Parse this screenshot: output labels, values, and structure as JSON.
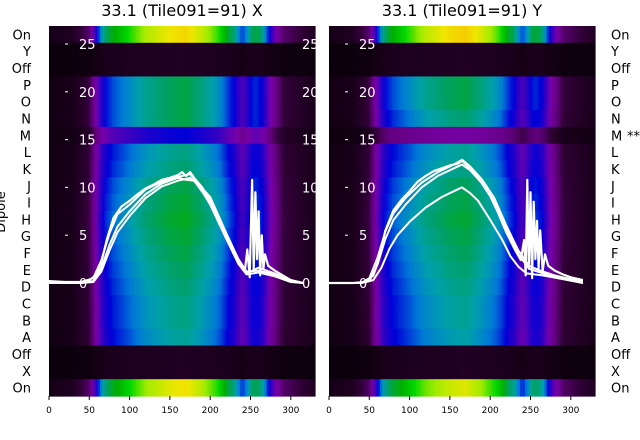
{
  "chart_data": [
    {
      "type": "heatmap",
      "title": "33.1 (Tile091=91) X",
      "ylabel": "Dipole",
      "x_ticks": [
        0,
        50,
        100,
        150,
        200,
        250,
        300
      ],
      "overlay_ticks": [
        0,
        5,
        10,
        15,
        20,
        25
      ],
      "xlim": [
        0,
        330
      ],
      "colormap": "spectral (black-purple-blue-green-yellow)",
      "row_labels": [
        "On",
        "Y",
        "Off",
        "P",
        "O",
        "N",
        "M",
        "L",
        "K",
        "J",
        "I",
        "H",
        "G",
        "F",
        "E",
        "D",
        "C",
        "B",
        "A",
        "Off",
        "X",
        "On"
      ],
      "row_notes": [
        "",
        "",
        "",
        "",
        "",
        "",
        "",
        "",
        "",
        "",
        "",
        "",
        "",
        "",
        "",
        "",
        "",
        "",
        "",
        "",
        "",
        ""
      ],
      "band_profile": {
        "x": [
          0,
          30,
          50,
          60,
          70,
          80,
          100,
          120,
          150,
          170,
          190,
          210,
          230,
          240,
          255,
          265,
          275,
          290,
          330
        ],
        "level": [
          0.02,
          0.04,
          0.12,
          0.35,
          0.52,
          0.58,
          0.65,
          0.72,
          0.78,
          0.8,
          0.74,
          0.66,
          0.5,
          0.38,
          0.55,
          0.5,
          0.3,
          0.12,
          0.04
        ]
      },
      "series": [
        {
          "values": [
            [
              0,
              0.2
            ],
            [
              20,
              0.1
            ],
            [
              40,
              0.1
            ],
            [
              50,
              0.3
            ],
            [
              58,
              0.8
            ],
            [
              65,
              2.2
            ],
            [
              72,
              4.6
            ],
            [
              80,
              6.8
            ],
            [
              90,
              8.0
            ],
            [
              100,
              8.6
            ],
            [
              110,
              9.3
            ],
            [
              120,
              9.9
            ],
            [
              130,
              10.3
            ],
            [
              140,
              10.8
            ],
            [
              150,
              11.0
            ],
            [
              160,
              11.3
            ],
            [
              165,
              11.6
            ],
            [
              170,
              11.2
            ],
            [
              175,
              11.6
            ],
            [
              180,
              11.0
            ],
            [
              190,
              10.0
            ],
            [
              200,
              8.6
            ],
            [
              210,
              6.9
            ],
            [
              220,
              4.9
            ],
            [
              230,
              3.1
            ],
            [
              238,
              1.9
            ],
            [
              243,
              1.3
            ],
            [
              246,
              3.5
            ],
            [
              249,
              0.6
            ],
            [
              252,
              10.8
            ],
            [
              254,
              1.5
            ],
            [
              256,
              9.5
            ],
            [
              258,
              2.5
            ],
            [
              260,
              7.5
            ],
            [
              262,
              0.8
            ],
            [
              264,
              5.0
            ],
            [
              266,
              1.5
            ],
            [
              268,
              3.0
            ],
            [
              272,
              1.8
            ],
            [
              280,
              1.3
            ],
            [
              290,
              0.8
            ],
            [
              300,
              0.3
            ],
            [
              315,
              0.0
            ]
          ]
        },
        {
          "values": [
            [
              0,
              0.0
            ],
            [
              40,
              0.0
            ],
            [
              55,
              0.2
            ],
            [
              65,
              1.6
            ],
            [
              75,
              4.0
            ],
            [
              85,
              5.9
            ],
            [
              100,
              7.5
            ],
            [
              120,
              9.3
            ],
            [
              140,
              10.4
            ],
            [
              160,
              11.0
            ],
            [
              170,
              10.8
            ],
            [
              180,
              10.7
            ],
            [
              200,
              8.4
            ],
            [
              220,
              4.8
            ],
            [
              235,
              2.2
            ],
            [
              245,
              1.0
            ],
            [
              260,
              1.6
            ],
            [
              280,
              1.0
            ],
            [
              300,
              0.2
            ],
            [
              315,
              0.0
            ]
          ]
        },
        {
          "values": [
            [
              0,
              0.1
            ],
            [
              40,
              0.1
            ],
            [
              55,
              0.5
            ],
            [
              65,
              2.4
            ],
            [
              75,
              5.2
            ],
            [
              85,
              7.2
            ],
            [
              100,
              8.2
            ],
            [
              120,
              9.8
            ],
            [
              140,
              10.6
            ],
            [
              160,
              11.1
            ],
            [
              175,
              11.4
            ],
            [
              185,
              10.4
            ],
            [
              200,
              9.0
            ],
            [
              220,
              5.2
            ],
            [
              235,
              2.5
            ],
            [
              245,
              1.2
            ],
            [
              260,
              1.3
            ],
            [
              280,
              0.9
            ],
            [
              300,
              0.2
            ],
            [
              315,
              0.0
            ]
          ]
        },
        {
          "values": [
            [
              0,
              0.0
            ],
            [
              40,
              0.0
            ],
            [
              55,
              0.1
            ],
            [
              65,
              1.2
            ],
            [
              75,
              3.4
            ],
            [
              85,
              5.3
            ],
            [
              100,
              7.0
            ],
            [
              120,
              8.9
            ],
            [
              140,
              10.1
            ],
            [
              160,
              10.7
            ],
            [
              175,
              11.0
            ],
            [
              185,
              10.3
            ],
            [
              200,
              8.2
            ],
            [
              220,
              4.6
            ],
            [
              235,
              2.0
            ],
            [
              245,
              0.9
            ],
            [
              260,
              1.1
            ],
            [
              280,
              0.7
            ],
            [
              300,
              0.1
            ],
            [
              315,
              0.0
            ]
          ]
        }
      ]
    },
    {
      "type": "heatmap",
      "title": "33.1 (Tile091=91) Y",
      "ylabel": "",
      "x_ticks": [
        0,
        50,
        100,
        150,
        200,
        250,
        300
      ],
      "overlay_ticks": [
        0,
        5,
        10,
        15,
        20,
        25
      ],
      "xlim": [
        0,
        330
      ],
      "colormap": "spectral (black-purple-blue-green-yellow)",
      "row_labels": [
        "On",
        "Y",
        "Off",
        "P",
        "O",
        "N",
        "M",
        "L",
        "K",
        "J",
        "I",
        "H",
        "G",
        "F",
        "E",
        "D",
        "C",
        "B",
        "A",
        "Off",
        "X",
        "On"
      ],
      "row_notes": [
        "",
        "",
        "",
        "",
        "",
        "",
        "**",
        "",
        "",
        "",
        "",
        "",
        "",
        "",
        "",
        "",
        "",
        "",
        "",
        "",
        "",
        ""
      ],
      "band_profile": {
        "x": [
          0,
          30,
          50,
          60,
          70,
          80,
          100,
          120,
          150,
          170,
          190,
          210,
          230,
          240,
          255,
          265,
          275,
          290,
          330
        ],
        "level": [
          0.02,
          0.04,
          0.12,
          0.35,
          0.52,
          0.58,
          0.65,
          0.72,
          0.78,
          0.8,
          0.74,
          0.66,
          0.5,
          0.38,
          0.55,
          0.5,
          0.3,
          0.12,
          0.04
        ]
      },
      "series": [
        {
          "values": [
            [
              0,
              0.0
            ],
            [
              30,
              0.0
            ],
            [
              45,
              0.1
            ],
            [
              55,
              0.8
            ],
            [
              62,
              2.5
            ],
            [
              70,
              5.5
            ],
            [
              80,
              7.6
            ],
            [
              90,
              8.7
            ],
            [
              100,
              9.6
            ],
            [
              110,
              10.6
            ],
            [
              120,
              11.2
            ],
            [
              130,
              11.7
            ],
            [
              140,
              12.0
            ],
            [
              150,
              12.3
            ],
            [
              160,
              12.5
            ],
            [
              165,
              12.8
            ],
            [
              170,
              12.4
            ],
            [
              175,
              12.0
            ],
            [
              180,
              11.5
            ],
            [
              190,
              10.4
            ],
            [
              200,
              9.1
            ],
            [
              210,
              7.3
            ],
            [
              220,
              5.3
            ],
            [
              230,
              3.6
            ],
            [
              238,
              2.4
            ],
            [
              242,
              4.5
            ],
            [
              244,
              0.8
            ],
            [
              246,
              10.8
            ],
            [
              248,
              1.5
            ],
            [
              250,
              9.5
            ],
            [
              252,
              0.5
            ],
            [
              254,
              8.5
            ],
            [
              256,
              2.5
            ],
            [
              258,
              6.5
            ],
            [
              260,
              1.5
            ],
            [
              262,
              5.5
            ],
            [
              265,
              1.2
            ],
            [
              268,
              3.0
            ],
            [
              272,
              1.8
            ],
            [
              280,
              1.3
            ],
            [
              290,
              0.9
            ],
            [
              300,
              0.6
            ],
            [
              315,
              0.3
            ]
          ]
        },
        {
          "values": [
            [
              0,
              0.0
            ],
            [
              40,
              0.0
            ],
            [
              50,
              0.2
            ],
            [
              60,
              1.9
            ],
            [
              70,
              4.6
            ],
            [
              80,
              6.6
            ],
            [
              95,
              8.2
            ],
            [
              115,
              10.0
            ],
            [
              135,
              11.2
            ],
            [
              155,
              12.0
            ],
            [
              165,
              12.4
            ],
            [
              175,
              11.8
            ],
            [
              190,
              10.4
            ],
            [
              205,
              8.5
            ],
            [
              220,
              5.6
            ],
            [
              235,
              3.0
            ],
            [
              248,
              1.5
            ],
            [
              262,
              1.1
            ],
            [
              280,
              0.6
            ],
            [
              300,
              0.3
            ],
            [
              315,
              0.0
            ]
          ]
        },
        {
          "values": [
            [
              0,
              0.0
            ],
            [
              40,
              0.0
            ],
            [
              50,
              0.5
            ],
            [
              60,
              2.6
            ],
            [
              70,
              5.4
            ],
            [
              80,
              7.3
            ],
            [
              95,
              8.9
            ],
            [
              115,
              10.5
            ],
            [
              135,
              11.6
            ],
            [
              155,
              12.4
            ],
            [
              165,
              12.9
            ],
            [
              175,
              12.2
            ],
            [
              190,
              10.8
            ],
            [
              205,
              8.9
            ],
            [
              220,
              6.0
            ],
            [
              235,
              3.4
            ],
            [
              248,
              1.8
            ],
            [
              262,
              1.3
            ],
            [
              280,
              0.8
            ],
            [
              300,
              0.4
            ],
            [
              315,
              0.2
            ]
          ]
        },
        {
          "values": [
            [
              0,
              0.0
            ],
            [
              40,
              0.0
            ],
            [
              55,
              0.3
            ],
            [
              65,
              1.6
            ],
            [
              75,
              3.6
            ],
            [
              85,
              5.0
            ],
            [
              100,
              6.4
            ],
            [
              120,
              7.9
            ],
            [
              140,
              9.0
            ],
            [
              155,
              9.6
            ],
            [
              165,
              10.0
            ],
            [
              175,
              9.4
            ],
            [
              185,
              8.6
            ],
            [
              200,
              6.6
            ],
            [
              215,
              4.5
            ],
            [
              225,
              2.8
            ],
            [
              235,
              1.7
            ],
            [
              245,
              1.0
            ],
            [
              265,
              0.8
            ],
            [
              290,
              0.4
            ],
            [
              315,
              0.0
            ]
          ]
        }
      ]
    }
  ]
}
